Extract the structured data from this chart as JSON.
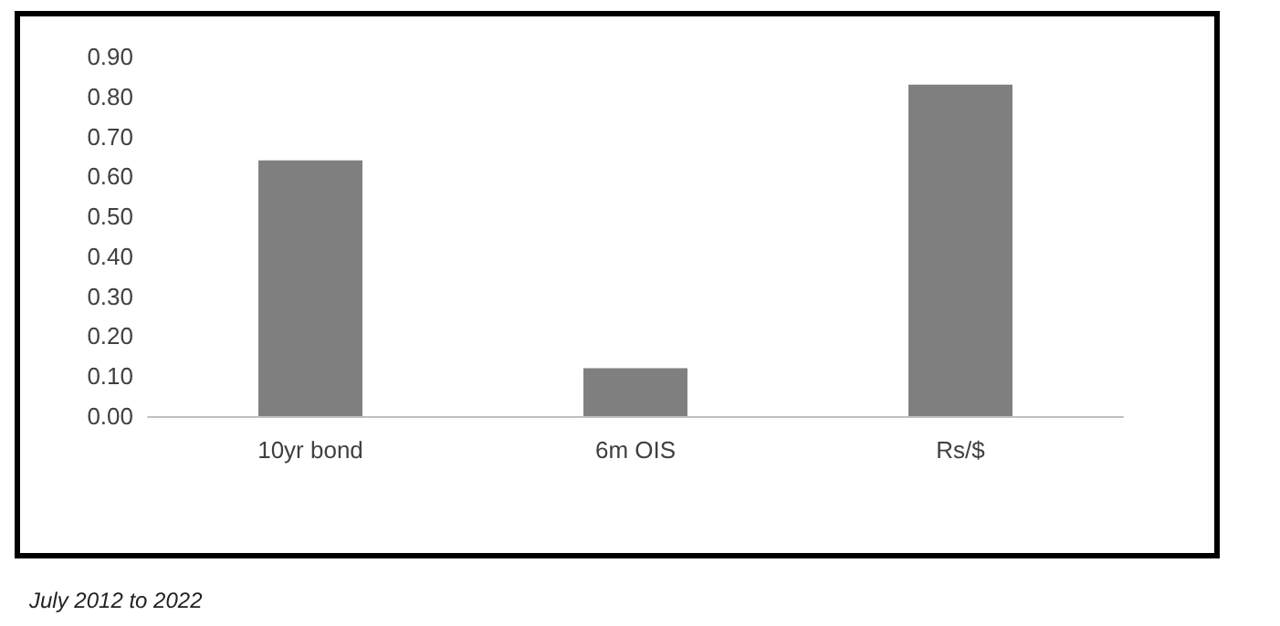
{
  "chart_data": {
    "type": "bar",
    "categories": [
      "10yr bond",
      "6m OIS",
      "Rs/$"
    ],
    "values": [
      0.64,
      0.12,
      0.83
    ],
    "color": "#7f7f7f",
    "ylim": [
      0,
      0.9
    ],
    "yticks": [
      {
        "value": 0,
        "label": "0.00"
      },
      {
        "value": 0.1,
        "label": "0.10"
      },
      {
        "value": 0.2,
        "label": "0.20"
      },
      {
        "value": 0.3,
        "label": "0.30"
      },
      {
        "value": 0.4,
        "label": "0.40"
      },
      {
        "value": 0.5,
        "label": "0.50"
      },
      {
        "value": 0.6,
        "label": "0.60"
      },
      {
        "value": 0.7,
        "label": "0.70"
      },
      {
        "value": 0.8,
        "label": "0.80"
      },
      {
        "value": 0.9,
        "label": "0.90"
      }
    ],
    "grid": false,
    "annotations": [
      "July 2012 to 2022"
    ]
  }
}
